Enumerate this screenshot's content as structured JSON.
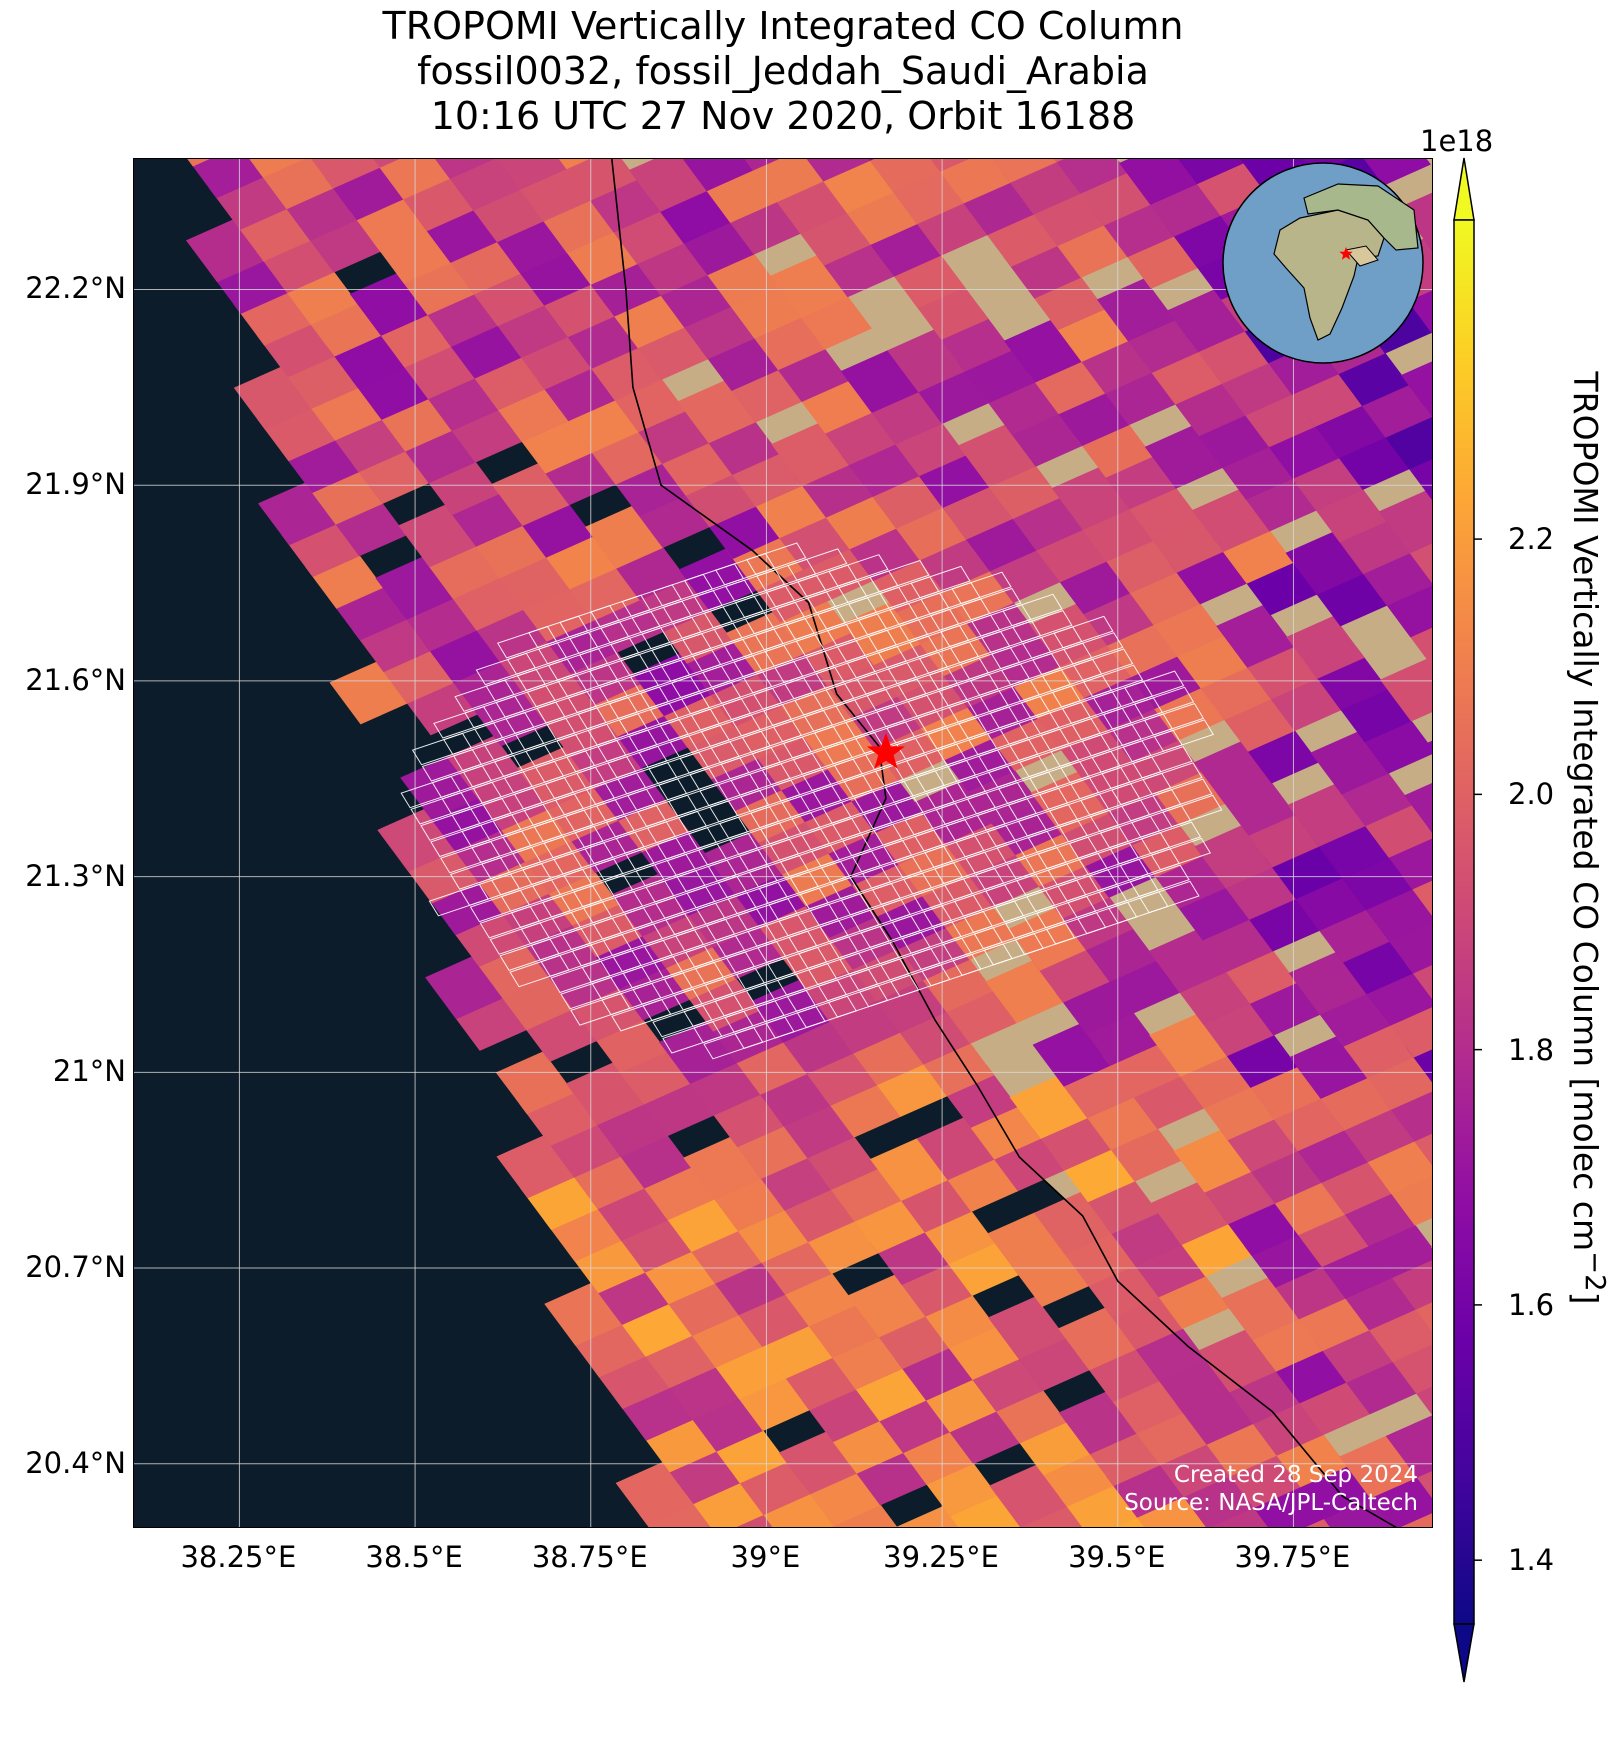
{
  "title": {
    "line1": "TROPOMI Vertically Integrated CO Column",
    "line2": "fossil0032, fossil_Jeddah_Saudi_Arabia",
    "line3": "10:16 UTC 27 Nov 2020, Orbit 16188"
  },
  "colorbar": {
    "label": "TROPOMI Vertically Integrated CO Column [molec cm",
    "label_exponent": "−2",
    "label_close": "]",
    "scale_label": "1e18",
    "min": 1.35,
    "max": 2.45,
    "colormap": "plasma",
    "extend": "both",
    "ticks": [
      {
        "value": 1.4,
        "label": "1.4"
      },
      {
        "value": 1.6,
        "label": "1.6"
      },
      {
        "value": 1.8,
        "label": "1.8"
      },
      {
        "value": 2.0,
        "label": "2.0"
      },
      {
        "value": 2.2,
        "label": "2.2"
      }
    ]
  },
  "map": {
    "lon_range": [
      38.1,
      39.95
    ],
    "lat_range": [
      20.3,
      22.4
    ],
    "gridlines": true,
    "basemap": "satellite imagery",
    "target": {
      "name": "Jeddah",
      "lon": 39.17,
      "lat": 21.49,
      "marker": "red star"
    },
    "lat_ticks": [
      {
        "value": 22.2,
        "label": "22.2°N"
      },
      {
        "value": 21.9,
        "label": "21.9°N"
      },
      {
        "value": 21.6,
        "label": "21.6°N"
      },
      {
        "value": 21.3,
        "label": "21.3°N"
      },
      {
        "value": 21.0,
        "label": "21°N"
      },
      {
        "value": 20.7,
        "label": "20.7°N"
      },
      {
        "value": 20.4,
        "label": "20.4°N"
      }
    ],
    "lon_ticks": [
      {
        "value": 38.25,
        "label": "38.25°E"
      },
      {
        "value": 38.5,
        "label": "38.5°E"
      },
      {
        "value": 38.75,
        "label": "38.75°E"
      },
      {
        "value": 39.0,
        "label": "39°E"
      },
      {
        "value": 39.25,
        "label": "39.25°E"
      },
      {
        "value": 39.5,
        "label": "39.5°E"
      },
      {
        "value": 39.75,
        "label": "39.75°E"
      }
    ],
    "inset": {
      "type": "globe locator",
      "marker": "red star"
    }
  },
  "credit": {
    "line1": "Created 28 Sep 2024",
    "line2": "Source: NASA/JPL-Caltech"
  },
  "colors": {
    "sea": "#0c1c2a",
    "target_marker": "#ff0000",
    "target_mask": "#ffffff",
    "gridline": "#d9d9d9"
  }
}
